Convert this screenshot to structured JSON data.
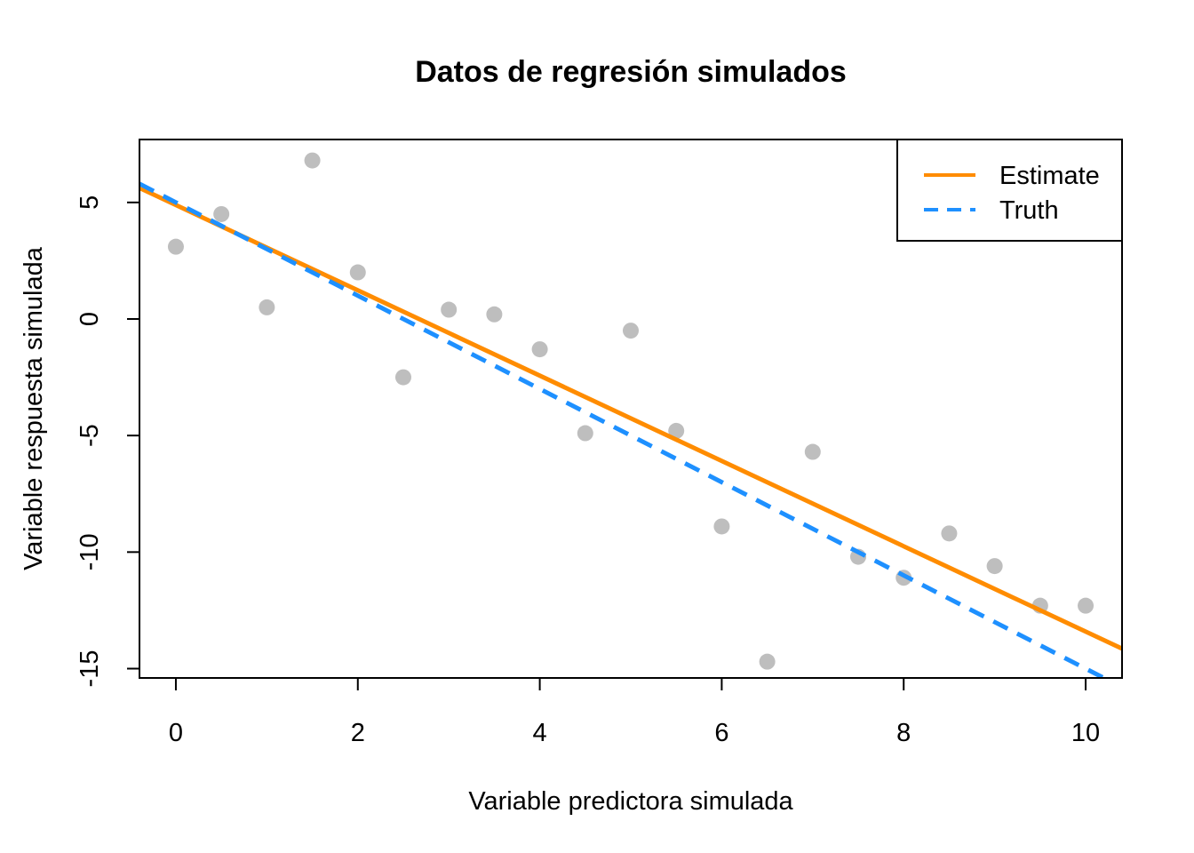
{
  "chart_data": {
    "type": "scatter",
    "title": "Datos de regresión simulados",
    "xlabel": "Variable predictora simulada",
    "ylabel": "Variable respuesta simulada",
    "xlim": [
      -0.4,
      10.4
    ],
    "ylim": [
      -15.4,
      7.7
    ],
    "x_ticks": [
      0,
      2,
      4,
      6,
      8,
      10
    ],
    "y_ticks": [
      5,
      0,
      -5,
      -10,
      -15
    ],
    "points": {
      "color": "#bebebe",
      "x": [
        0,
        0.5,
        1,
        1.5,
        2,
        2.5,
        3,
        3.5,
        4,
        4.5,
        5,
        5.5,
        6,
        6.5,
        7,
        7.5,
        8,
        8.5,
        9,
        9.5,
        10
      ],
      "y": [
        3.1,
        4.5,
        0.5,
        6.8,
        2.0,
        -2.5,
        0.4,
        0.2,
        -1.3,
        -4.9,
        -0.5,
        -4.8,
        -8.9,
        -14.7,
        -5.7,
        -10.2,
        -11.1,
        -9.2,
        -10.6,
        -12.3,
        -12.3
      ]
    },
    "series": [
      {
        "name": "Estimate",
        "type": "line",
        "style": "solid",
        "color": "#ff8c00",
        "intercept": 4.89,
        "slope": -1.83
      },
      {
        "name": "Truth",
        "type": "line",
        "style": "dashed",
        "color": "#1e90ff",
        "intercept": 5.0,
        "slope": -2.0
      }
    ],
    "legend": {
      "position": "top-right",
      "entries": [
        "Estimate",
        "Truth"
      ]
    },
    "grid": false
  }
}
